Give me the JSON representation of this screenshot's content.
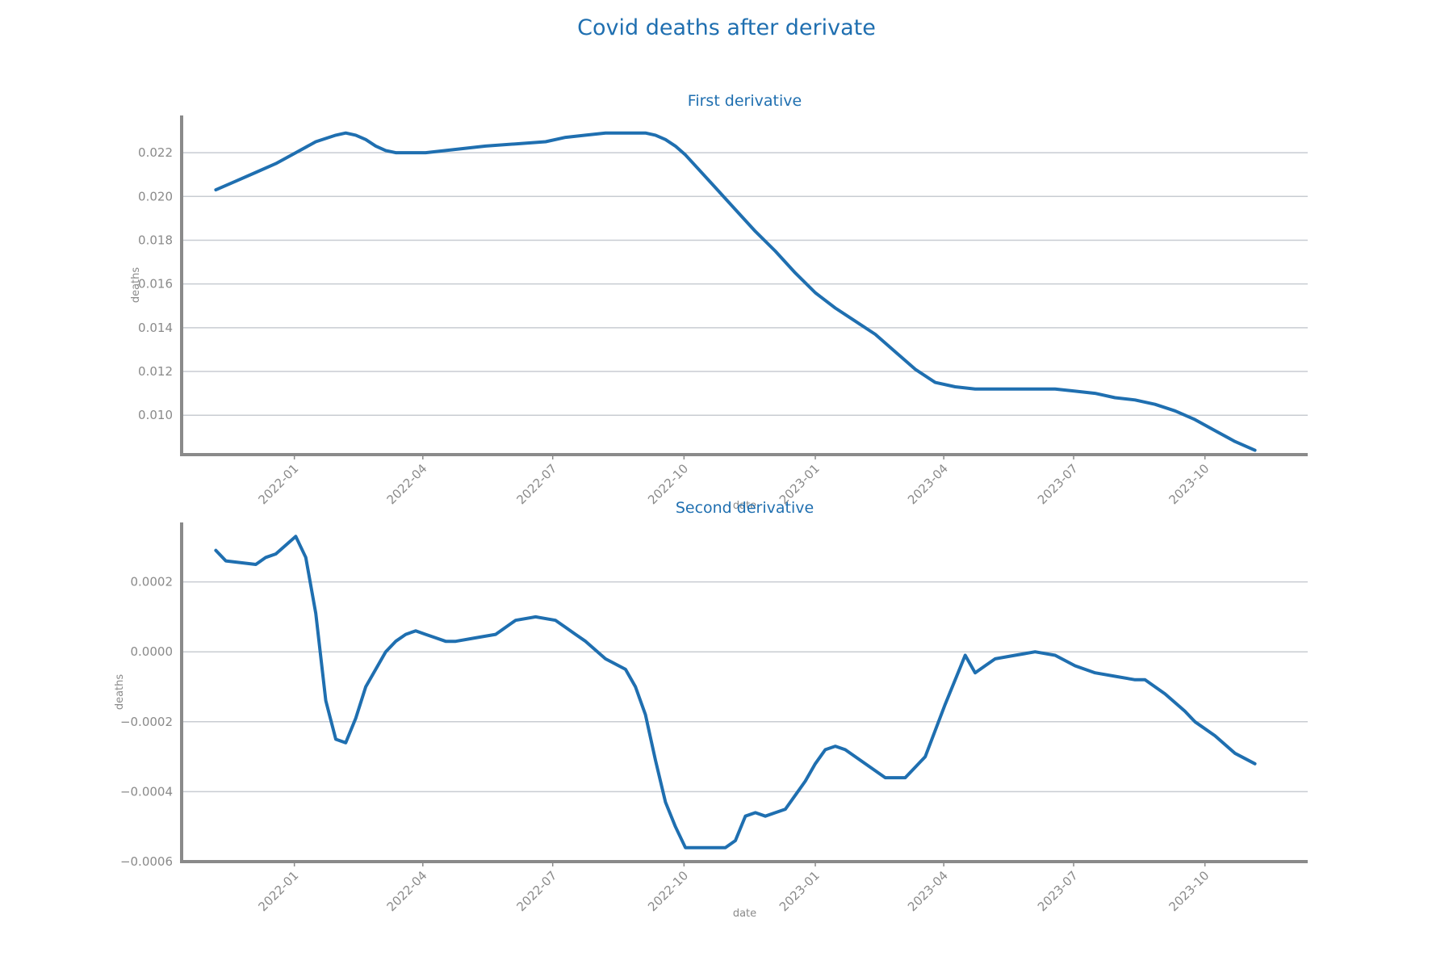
{
  "figure": {
    "title": "Covid deaths after derivate"
  },
  "colors": {
    "line": "#1f6fb0",
    "grid": "#c8ccd2",
    "axis": "#8a8a8a",
    "title": "#1f6fb0"
  },
  "chart_data": [
    {
      "type": "line",
      "title": "First derivative",
      "xlabel": "date",
      "ylabel": "deaths",
      "grid": "horizontal",
      "xlim": [
        "2021-10-14",
        "2023-12-12"
      ],
      "ylim": [
        0.0082,
        0.0237
      ],
      "xticks": [
        "2022-01",
        "2022-04",
        "2022-07",
        "2022-10",
        "2023-01",
        "2023-04",
        "2023-07",
        "2023-10"
      ],
      "yticks": [
        "0.010",
        "0.012",
        "0.014",
        "0.016",
        "0.018",
        "0.020",
        "0.022"
      ],
      "series": [
        {
          "x": [
            "2021-11-07",
            "2021-11-21",
            "2021-12-05",
            "2021-12-19",
            "2022-01-02",
            "2022-01-16",
            "2022-01-30",
            "2022-02-06",
            "2022-02-13",
            "2022-02-20",
            "2022-02-27",
            "2022-03-06",
            "2022-03-13",
            "2022-03-20",
            "2022-03-27",
            "2022-04-03",
            "2022-04-17",
            "2022-05-01",
            "2022-05-15",
            "2022-06-05",
            "2022-06-26",
            "2022-07-10",
            "2022-07-24",
            "2022-08-07",
            "2022-08-21",
            "2022-09-04",
            "2022-09-11",
            "2022-09-18",
            "2022-09-25",
            "2022-10-02",
            "2022-10-09",
            "2022-10-23",
            "2022-11-06",
            "2022-11-20",
            "2022-12-04",
            "2022-12-18",
            "2023-01-01",
            "2023-01-15",
            "2023-01-29",
            "2023-02-12",
            "2023-02-26",
            "2023-03-12",
            "2023-03-26",
            "2023-04-09",
            "2023-04-23",
            "2023-05-07",
            "2023-05-21",
            "2023-06-04",
            "2023-06-18",
            "2023-07-02",
            "2023-07-16",
            "2023-07-30",
            "2023-08-13",
            "2023-08-27",
            "2023-09-10",
            "2023-09-24",
            "2023-10-08",
            "2023-10-22",
            "2023-11-05"
          ],
          "y": [
            0.0203,
            0.0207,
            0.0211,
            0.0215,
            0.022,
            0.0225,
            0.0228,
            0.0229,
            0.0228,
            0.0226,
            0.0223,
            0.0221,
            0.022,
            0.022,
            0.022,
            0.022,
            0.0221,
            0.0222,
            0.0223,
            0.0224,
            0.0225,
            0.0227,
            0.0228,
            0.0229,
            0.0229,
            0.0229,
            0.0228,
            0.0226,
            0.0223,
            0.0219,
            0.0214,
            0.0204,
            0.0194,
            0.0184,
            0.0175,
            0.0165,
            0.0156,
            0.0149,
            0.0143,
            0.0137,
            0.0129,
            0.0121,
            0.0115,
            0.0113,
            0.0112,
            0.0112,
            0.0112,
            0.0112,
            0.0112,
            0.0111,
            0.011,
            0.0108,
            0.0107,
            0.0105,
            0.0102,
            0.0098,
            0.0093,
            0.0088,
            0.0084
          ]
        }
      ]
    },
    {
      "type": "line",
      "title": "Second derivative",
      "xlabel": "date",
      "ylabel": "deaths",
      "grid": "horizontal",
      "xlim": [
        "2021-10-14",
        "2023-12-12"
      ],
      "ylim": [
        -0.0006,
        0.00037
      ],
      "xticks": [
        "2022-01",
        "2022-04",
        "2022-07",
        "2022-10",
        "2023-01",
        "2023-04",
        "2023-07",
        "2023-10"
      ],
      "yticks": [
        "−0.0006",
        "−0.0004",
        "−0.0002",
        "0.0000",
        "0.0002"
      ],
      "series": [
        {
          "x": [
            "2021-11-07",
            "2021-11-14",
            "2021-12-05",
            "2021-12-12",
            "2021-12-19",
            "2022-01-02",
            "2022-01-09",
            "2022-01-16",
            "2022-01-23",
            "2022-01-30",
            "2022-02-06",
            "2022-02-13",
            "2022-02-20",
            "2022-03-06",
            "2022-03-13",
            "2022-03-20",
            "2022-03-27",
            "2022-04-03",
            "2022-04-10",
            "2022-04-17",
            "2022-04-24",
            "2022-05-08",
            "2022-05-22",
            "2022-06-05",
            "2022-06-19",
            "2022-07-03",
            "2022-07-10",
            "2022-07-17",
            "2022-07-24",
            "2022-08-07",
            "2022-08-21",
            "2022-08-28",
            "2022-09-04",
            "2022-09-11",
            "2022-09-18",
            "2022-09-25",
            "2022-10-02",
            "2022-10-09",
            "2022-10-16",
            "2022-10-30",
            "2022-11-06",
            "2022-11-13",
            "2022-11-20",
            "2022-11-27",
            "2022-12-04",
            "2022-12-11",
            "2022-12-18",
            "2022-12-25",
            "2023-01-01",
            "2023-01-08",
            "2023-01-15",
            "2023-01-22",
            "2023-02-05",
            "2023-02-19",
            "2023-03-05",
            "2023-03-12",
            "2023-03-19",
            "2023-04-02",
            "2023-04-16",
            "2023-04-23",
            "2023-04-30",
            "2023-05-07",
            "2023-05-21",
            "2023-06-04",
            "2023-06-18",
            "2023-07-02",
            "2023-07-16",
            "2023-07-30",
            "2023-08-13",
            "2023-08-20",
            "2023-08-27",
            "2023-09-03",
            "2023-09-17",
            "2023-09-24",
            "2023-10-08",
            "2023-10-22",
            "2023-11-05"
          ],
          "y": [
            0.00029,
            0.00026,
            0.00025,
            0.00027,
            0.00028,
            0.00033,
            0.00027,
            0.00011,
            -0.00014,
            -0.00025,
            -0.00026,
            -0.00019,
            -0.0001,
            0.0,
            3e-05,
            5e-05,
            6e-05,
            5e-05,
            4e-05,
            3e-05,
            3e-05,
            4e-05,
            5e-05,
            9e-05,
            0.0001,
            9e-05,
            7e-05,
            5e-05,
            3e-05,
            -2e-05,
            -5e-05,
            -0.0001,
            -0.00018,
            -0.00031,
            -0.00043,
            -0.0005,
            -0.00056,
            -0.00056,
            -0.00056,
            -0.00056,
            -0.00054,
            -0.00047,
            -0.00046,
            -0.00047,
            -0.00046,
            -0.00045,
            -0.00041,
            -0.00037,
            -0.00032,
            -0.00028,
            -0.00027,
            -0.00028,
            -0.00032,
            -0.00036,
            -0.00036,
            -0.00033,
            -0.0003,
            -0.00015,
            -1e-05,
            -6e-05,
            -4e-05,
            -2e-05,
            -1e-05,
            0.0,
            -1e-05,
            -4e-05,
            -6e-05,
            -7e-05,
            -8e-05,
            -8e-05,
            -0.0001,
            -0.00012,
            -0.00017,
            -0.0002,
            -0.00024,
            -0.00029,
            -0.00032
          ]
        }
      ]
    }
  ]
}
